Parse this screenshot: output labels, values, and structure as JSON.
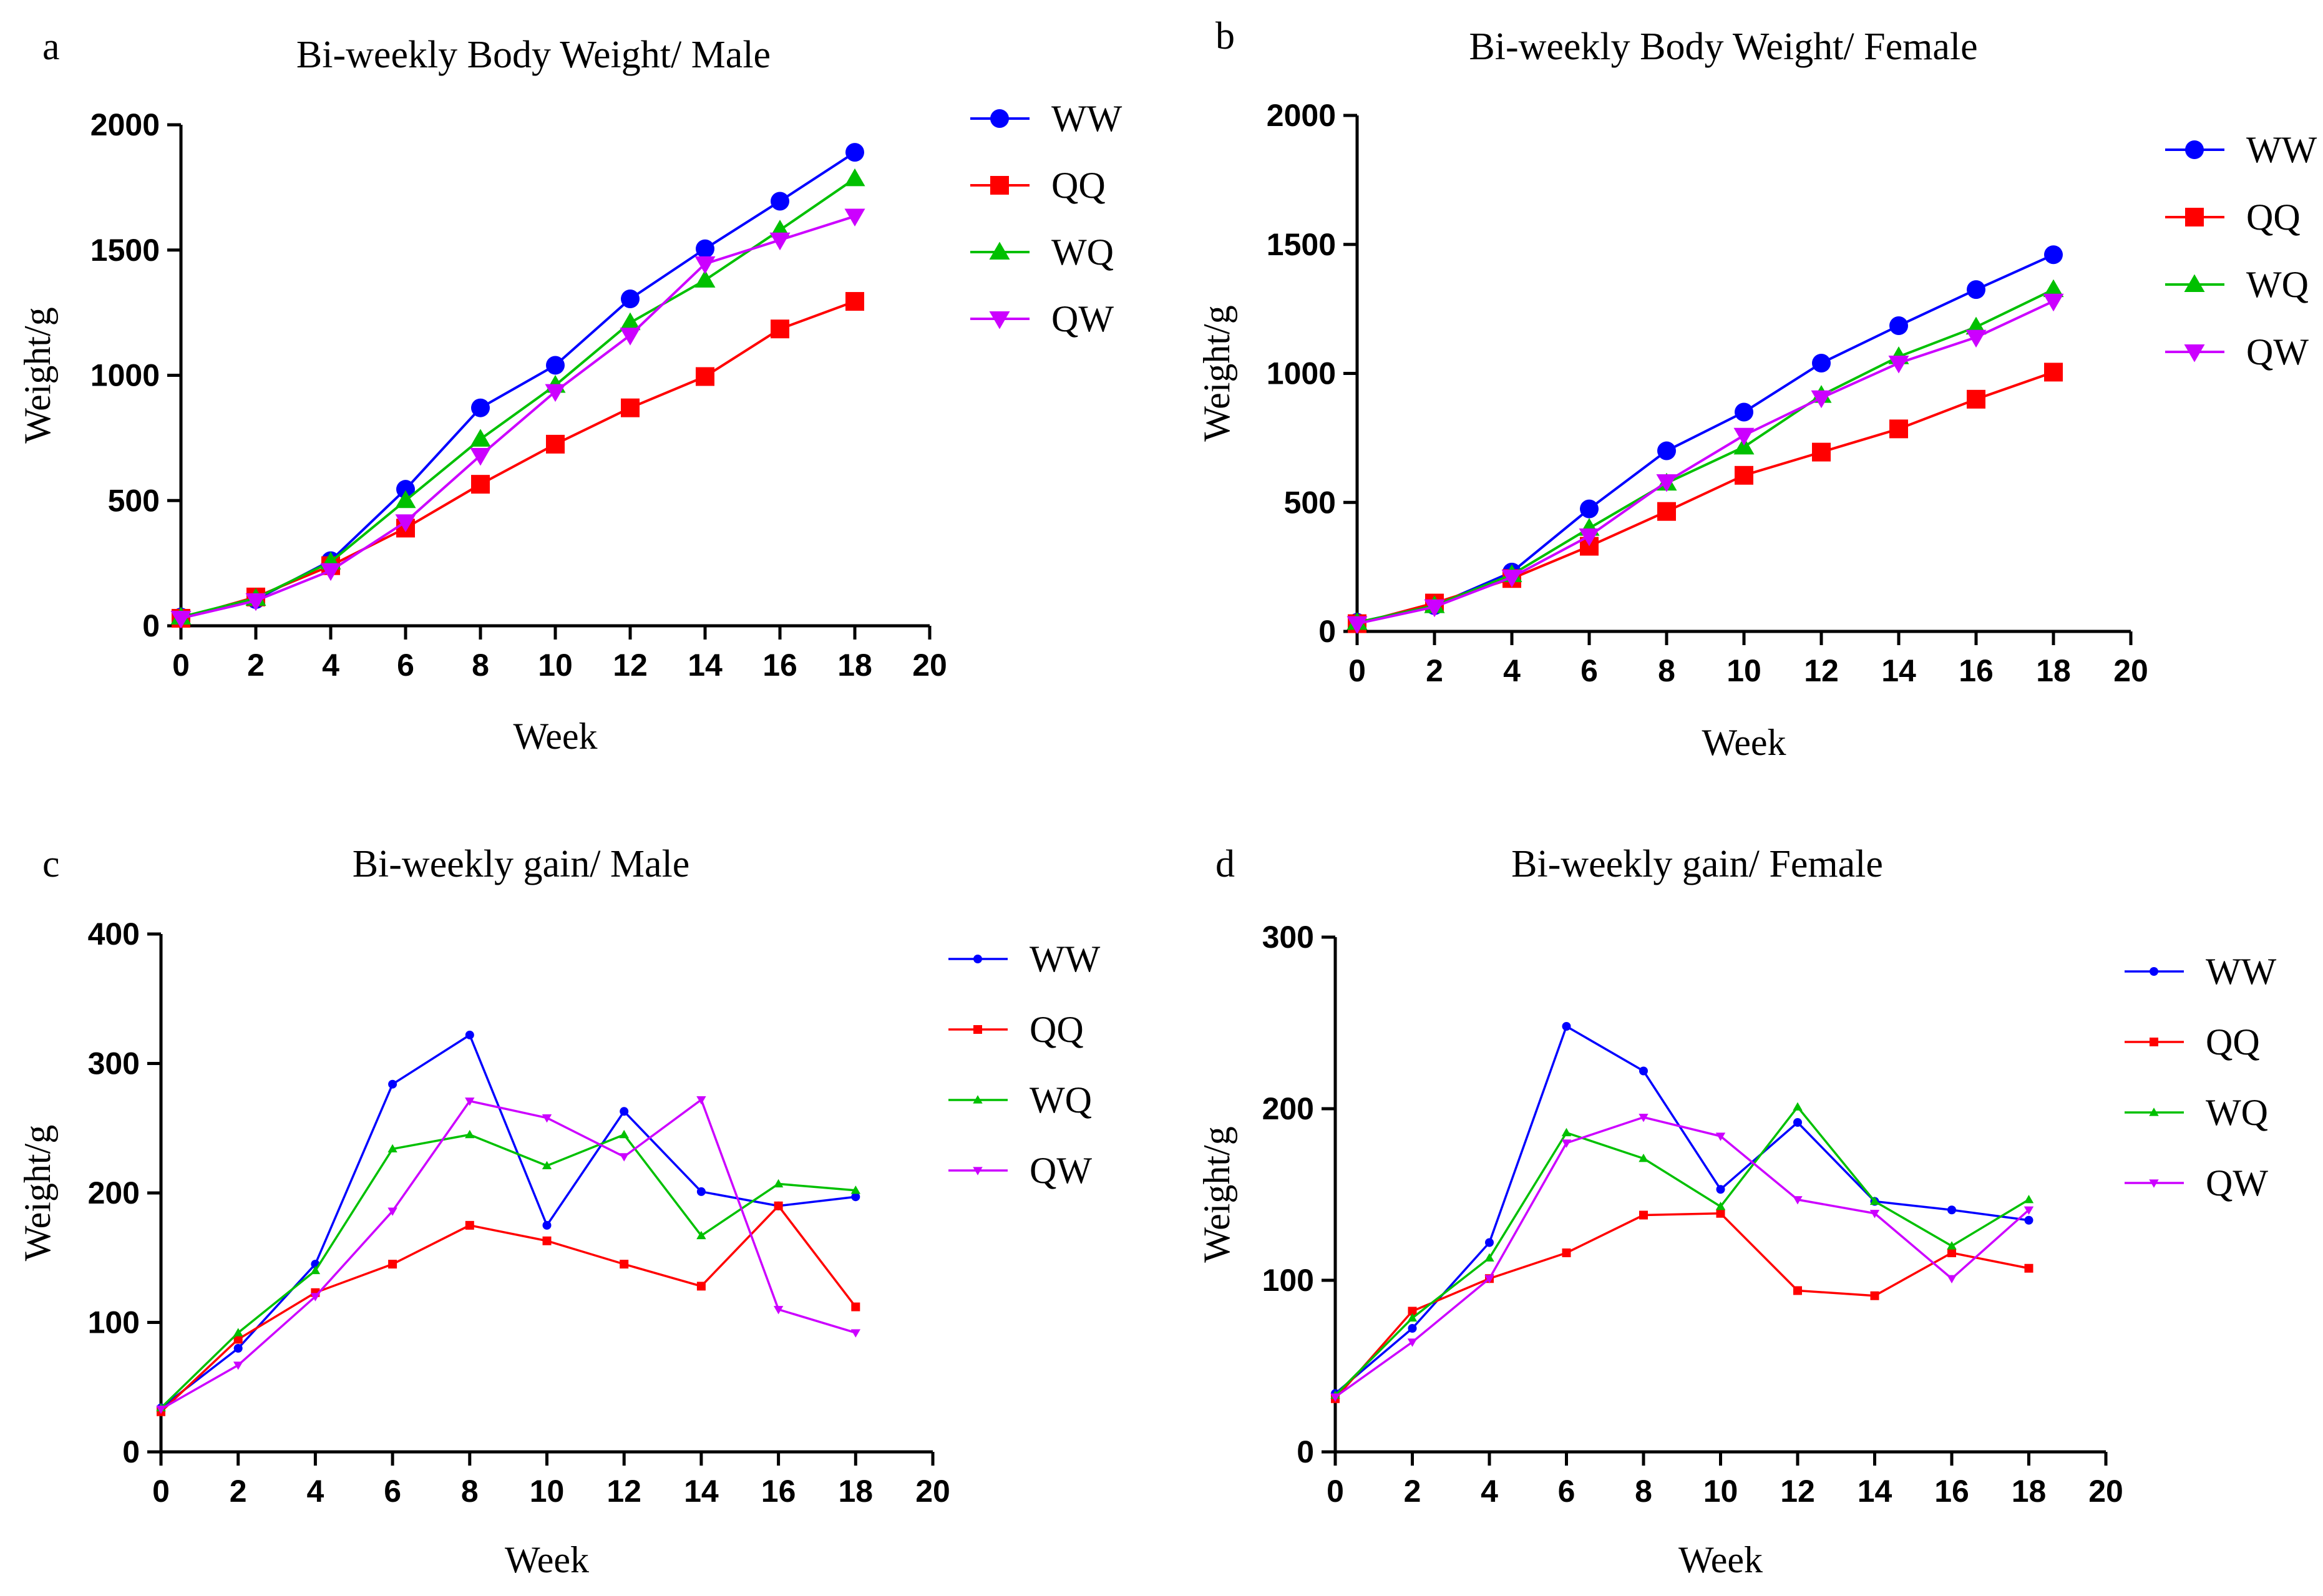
{
  "figure": {
    "panels": [
      {
        "letter": "a"
      },
      {
        "letter": "b"
      },
      {
        "letter": "c"
      },
      {
        "letter": "d"
      }
    ]
  },
  "chart_data": [
    {
      "panel": "a",
      "type": "line",
      "title": "Bi-weekly Body Weight/ Male",
      "xlabel": "Week",
      "ylabel": "Weight/g",
      "xlim": [
        0,
        20
      ],
      "ylim": [
        0,
        2000
      ],
      "xticks": [
        0,
        2,
        4,
        6,
        8,
        10,
        12,
        14,
        16,
        18,
        20
      ],
      "yticks": [
        0,
        500,
        1000,
        1500,
        2000
      ],
      "grid": false,
      "legend": "top-right",
      "x": [
        0,
        2,
        4,
        6,
        8,
        10,
        12,
        14,
        16,
        18
      ],
      "series": [
        {
          "name": "WW",
          "color": "#0000ff",
          "marker": "circle",
          "values": [
            35,
            105,
            260,
            545,
            870,
            1040,
            1305,
            1505,
            1695,
            1890
          ]
        },
        {
          "name": "QQ",
          "color": "#ff0000",
          "marker": "square",
          "values": [
            30,
            115,
            240,
            390,
            565,
            725,
            870,
            995,
            1185,
            1295
          ]
        },
        {
          "name": "WQ",
          "color": "#00c000",
          "marker": "triangle",
          "values": [
            35,
            110,
            255,
            500,
            745,
            960,
            1210,
            1380,
            1580,
            1785
          ]
        },
        {
          "name": "QW",
          "color": "#cc00ff",
          "marker": "triangle-down",
          "values": [
            30,
            100,
            220,
            415,
            680,
            935,
            1160,
            1445,
            1540,
            1635
          ]
        }
      ]
    },
    {
      "panel": "b",
      "type": "line",
      "title": "Bi-weekly Body Weight/ Female",
      "xlabel": "Week",
      "ylabel": "Weight/g",
      "xlim": [
        0,
        20
      ],
      "ylim": [
        0,
        2000
      ],
      "xticks": [
        0,
        2,
        4,
        6,
        8,
        10,
        12,
        14,
        16,
        18,
        20
      ],
      "yticks": [
        0,
        500,
        1000,
        1500,
        2000
      ],
      "grid": false,
      "legend": "top-right",
      "x": [
        0,
        2,
        4,
        6,
        8,
        10,
        12,
        14,
        16,
        18
      ],
      "series": [
        {
          "name": "WW",
          "color": "#0000ff",
          "marker": "circle",
          "values": [
            35,
            100,
            230,
            475,
            700,
            850,
            1040,
            1185,
            1325,
            1460
          ]
        },
        {
          "name": "QQ",
          "color": "#ff0000",
          "marker": "square",
          "values": [
            30,
            110,
            205,
            330,
            465,
            605,
            695,
            785,
            900,
            1005
          ]
        },
        {
          "name": "WQ",
          "color": "#00c000",
          "marker": "triangle",
          "values": [
            35,
            100,
            220,
            400,
            575,
            715,
            915,
            1065,
            1180,
            1325
          ]
        },
        {
          "name": "QW",
          "color": "#cc00ff",
          "marker": "triangle-down",
          "values": [
            30,
            95,
            210,
            370,
            580,
            760,
            905,
            1040,
            1140,
            1280
          ]
        }
      ]
    },
    {
      "panel": "c",
      "type": "line",
      "title": "Bi-weekly gain/ Male",
      "xlabel": "Week",
      "ylabel": "Weight/g",
      "xlim": [
        0,
        20
      ],
      "ylim": [
        0,
        400
      ],
      "xticks": [
        0,
        2,
        4,
        6,
        8,
        10,
        12,
        14,
        16,
        18,
        20
      ],
      "yticks": [
        0,
        100,
        200,
        300,
        400
      ],
      "grid": false,
      "legend": "top-right",
      "x": [
        0,
        2,
        4,
        6,
        8,
        10,
        12,
        14,
        16,
        18
      ],
      "series": [
        {
          "name": "WW",
          "color": "#0000ff",
          "marker": "circle",
          "values": [
            34,
            80,
            145,
            284,
            322,
            175,
            263,
            201,
            190,
            197
          ]
        },
        {
          "name": "QQ",
          "color": "#ff0000",
          "marker": "square",
          "values": [
            31,
            87,
            123,
            145,
            175,
            163,
            145,
            128,
            190,
            112
          ]
        },
        {
          "name": "WQ",
          "color": "#00c000",
          "marker": "triangle",
          "values": [
            34,
            92,
            140,
            234,
            245,
            221,
            245,
            167,
            207,
            202
          ]
        },
        {
          "name": "QW",
          "color": "#cc00ff",
          "marker": "triangle-down",
          "values": [
            33,
            67,
            120,
            186,
            271,
            258,
            228,
            272,
            110,
            92
          ]
        }
      ]
    },
    {
      "panel": "d",
      "type": "line",
      "title": "Bi-weekly gain/ Female",
      "xlabel": "Week",
      "ylabel": "Weight/g",
      "xlim": [
        0,
        20
      ],
      "ylim": [
        0,
        300
      ],
      "xticks": [
        0,
        2,
        4,
        6,
        8,
        10,
        12,
        14,
        16,
        18,
        20
      ],
      "yticks": [
        0,
        100,
        200,
        300
      ],
      "grid": false,
      "legend": "top-right",
      "x": [
        0,
        2,
        4,
        6,
        8,
        10,
        12,
        14,
        16,
        18
      ],
      "series": [
        {
          "name": "WW",
          "color": "#0000ff",
          "marker": "circle",
          "values": [
            34,
            72,
            122,
            248,
            222,
            153,
            192,
            146,
            141,
            135
          ]
        },
        {
          "name": "QQ",
          "color": "#ff0000",
          "marker": "square",
          "values": [
            31,
            82,
            101,
            116,
            138,
            139,
            94,
            91,
            116,
            107
          ]
        },
        {
          "name": "WQ",
          "color": "#00c000",
          "marker": "triangle",
          "values": [
            33,
            78,
            113,
            186,
            171,
            143,
            201,
            146,
            120,
            147
          ]
        },
        {
          "name": "QW",
          "color": "#cc00ff",
          "marker": "triangle-down",
          "values": [
            32,
            64,
            101,
            180,
            195,
            184,
            147,
            139,
            101,
            141
          ]
        }
      ]
    }
  ]
}
